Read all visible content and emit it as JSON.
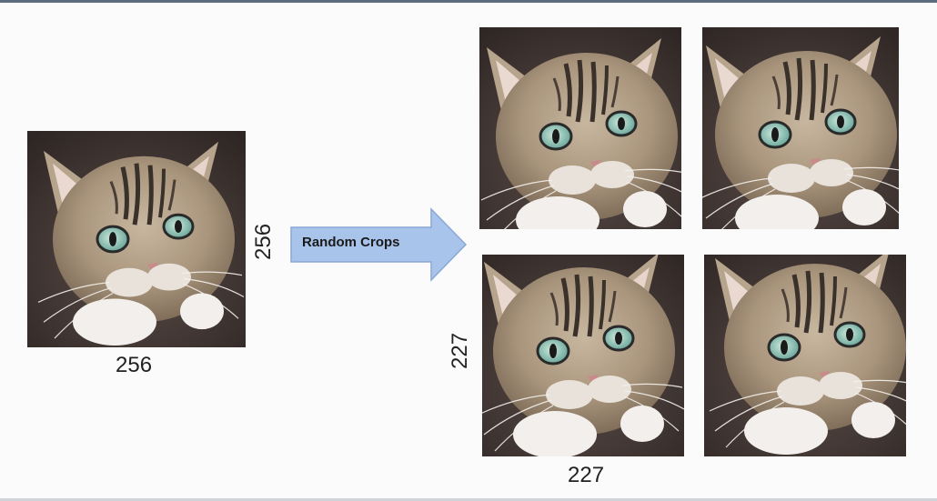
{
  "original": {
    "width_label": "256",
    "height_label": "256"
  },
  "arrow": {
    "label": "Random Crops",
    "fill": "#a9c4ea",
    "stroke": "#7f9fd0"
  },
  "crops": {
    "width_label": "227",
    "height_label": "227"
  },
  "photo": {
    "subject": "tabby cat looking up",
    "icon": "cat-photo"
  }
}
